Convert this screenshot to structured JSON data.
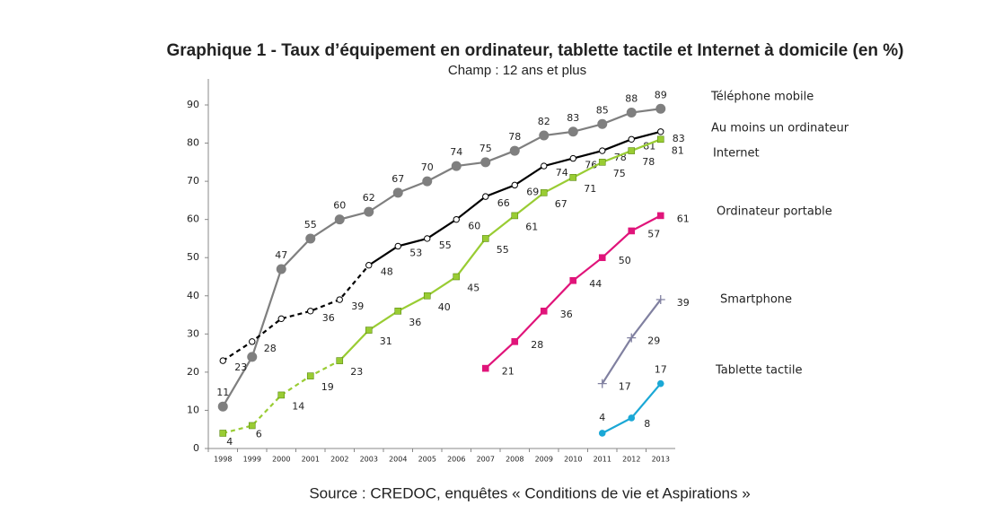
{
  "chart_data": {
    "type": "line",
    "title": "Graphique 1 - Taux d’équipement en ordinateur, tablette tactile et Internet à domicile (en %)",
    "subtitle": "Champ : 12 ans et plus",
    "source": "Source : CREDOC, enquêtes « Conditions de vie et Aspirations »",
    "categories": [
      "1998",
      "1999",
      "2000",
      "2001",
      "2002",
      "2003",
      "2004",
      "2005",
      "2006",
      "2007",
      "2008",
      "2009",
      "2010",
      "2011",
      "2012",
      "2013"
    ],
    "ylim": [
      0,
      90
    ],
    "yticks": [
      0,
      10,
      20,
      30,
      40,
      50,
      60,
      70,
      80,
      90
    ],
    "series": [
      {
        "name": "Téléphone mobile",
        "color": "#7f7f7f",
        "marker": "big-circle",
        "values": [
          11,
          24,
          47,
          55,
          60,
          62,
          67,
          70,
          74,
          75,
          78,
          82,
          83,
          85,
          88,
          89
        ],
        "value_labels": [
          "11",
          null,
          "47",
          "55",
          "60",
          "62",
          "67",
          "70",
          "74",
          "75",
          "78",
          "82",
          "83",
          "85",
          "88",
          "89"
        ]
      },
      {
        "name": "Au moins un ordinateur",
        "color": "#000000",
        "marker": "open-circle",
        "dashed_until": "2003",
        "values": [
          23,
          28,
          34,
          36,
          39,
          48,
          53,
          55,
          60,
          66,
          69,
          74,
          76,
          78,
          81,
          83
        ],
        "value_labels": [
          "23",
          "28",
          null,
          "36",
          "39",
          "48",
          "53",
          "55",
          "60",
          "66",
          "69",
          "74",
          "76",
          "78",
          "81",
          "83"
        ]
      },
      {
        "name": "Internet",
        "color": "#99cc33",
        "marker": "square",
        "dashed_until": "2002",
        "values": [
          4,
          6,
          14,
          19,
          23,
          31,
          36,
          40,
          45,
          55,
          61,
          67,
          71,
          75,
          78,
          81
        ]
      },
      {
        "name": "Ordinateur portable",
        "color": "#e0147a",
        "marker": "square",
        "values": [
          null,
          null,
          null,
          null,
          null,
          null,
          null,
          null,
          null,
          21,
          28,
          36,
          44,
          50,
          57,
          61
        ]
      },
      {
        "name": "Smartphone",
        "color": "#8080a0",
        "marker": "plus",
        "values": [
          null,
          null,
          null,
          null,
          null,
          null,
          null,
          null,
          null,
          null,
          null,
          null,
          null,
          17,
          29,
          39
        ]
      },
      {
        "name": "Tablette tactile",
        "color": "#1ba8d6",
        "marker": "dot",
        "values": [
          null,
          null,
          null,
          null,
          null,
          null,
          null,
          null,
          null,
          null,
          null,
          null,
          null,
          4,
          8,
          17
        ]
      }
    ]
  }
}
